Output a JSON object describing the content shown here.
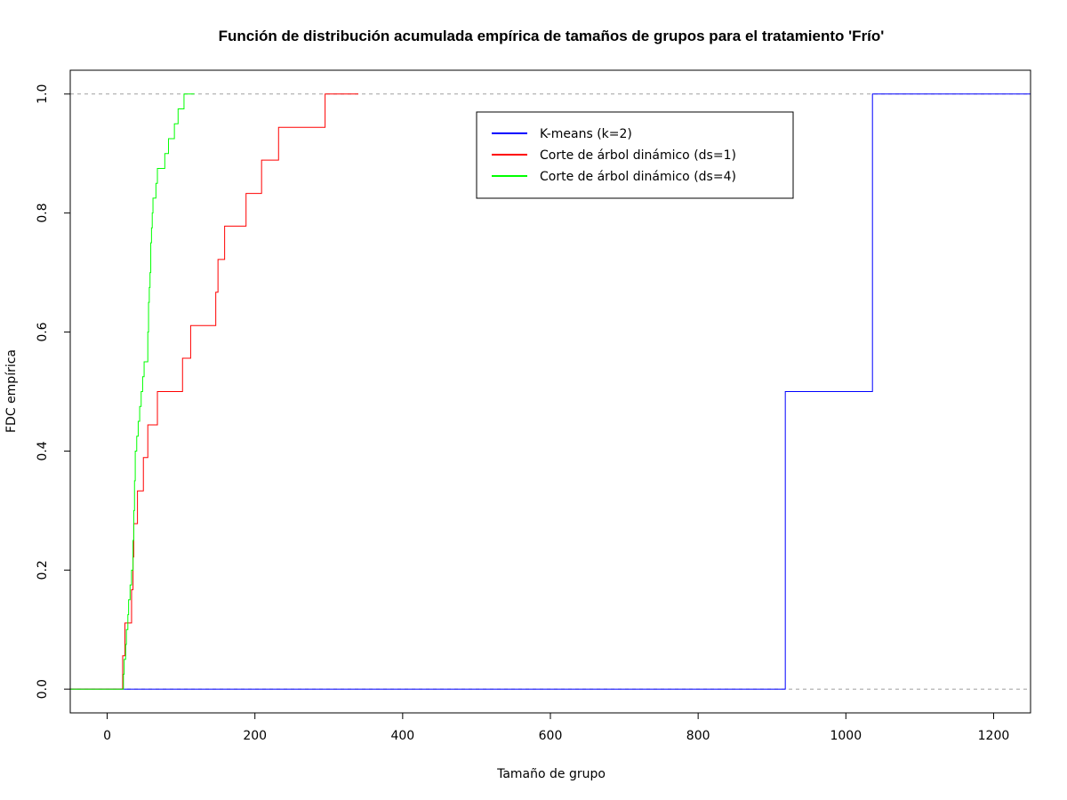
{
  "chart_data": {
    "type": "line",
    "step": true,
    "title": "Función de distribución acumulada empírica de tamaños de grupos para el tratamiento 'Frío'",
    "xlabel": "Tamaño de grupo",
    "ylabel": "FDC empírica",
    "xlim": [
      -50,
      1250
    ],
    "ylim": [
      -0.04,
      1.04
    ],
    "xticks": [
      0,
      200,
      400,
      600,
      800,
      1000,
      1200
    ],
    "xtick_labels": [
      "0",
      "200",
      "400",
      "600",
      "800",
      "1000",
      "1200"
    ],
    "yticks": [
      0,
      0.2,
      0.4,
      0.6,
      0.8,
      1.0
    ],
    "ytick_labels": [
      "0.0",
      "0.2",
      "0.4",
      "0.6",
      "0.8",
      "1.0"
    ],
    "hlines": [
      0,
      1
    ],
    "grid": false,
    "legend_position": "top-center",
    "series": [
      {
        "name": "K-means (k=2)",
        "color": "#0000ff",
        "points": [
          [
            -50,
            0
          ],
          [
            918,
            0.5
          ],
          [
            1036,
            1.0
          ],
          [
            1250,
            1.0
          ]
        ]
      },
      {
        "name": "Corte de árbol dinámico (ds=1)",
        "color": "#ff0000",
        "points": [
          [
            -50,
            0
          ],
          [
            21,
            0.056
          ],
          [
            24,
            0.111
          ],
          [
            33,
            0.167
          ],
          [
            35,
            0.222
          ],
          [
            36,
            0.278
          ],
          [
            41,
            0.333
          ],
          [
            49,
            0.389
          ],
          [
            55,
            0.444
          ],
          [
            68,
            0.5
          ],
          [
            102,
            0.556
          ],
          [
            113,
            0.611
          ],
          [
            147,
            0.667
          ],
          [
            150,
            0.722
          ],
          [
            159,
            0.778
          ],
          [
            188,
            0.833
          ],
          [
            209,
            0.889
          ],
          [
            232,
            0.944
          ],
          [
            295,
            1.0
          ],
          [
            340,
            1.0
          ]
        ]
      },
      {
        "name": "Corte de árbol dinámico (ds=4)",
        "color": "#00ff00",
        "points": [
          [
            -50,
            0
          ],
          [
            22,
            0.025
          ],
          [
            23,
            0.05
          ],
          [
            25,
            0.075
          ],
          [
            26,
            0.1
          ],
          [
            28,
            0.125
          ],
          [
            29,
            0.15
          ],
          [
            31,
            0.175
          ],
          [
            33,
            0.2
          ],
          [
            35,
            0.25
          ],
          [
            36,
            0.3
          ],
          [
            37,
            0.35
          ],
          [
            38,
            0.4
          ],
          [
            40,
            0.425
          ],
          [
            42,
            0.45
          ],
          [
            44,
            0.475
          ],
          [
            46,
            0.5
          ],
          [
            48,
            0.525
          ],
          [
            50,
            0.55
          ],
          [
            55,
            0.6
          ],
          [
            56,
            0.65
          ],
          [
            57,
            0.675
          ],
          [
            58,
            0.7
          ],
          [
            59,
            0.75
          ],
          [
            60,
            0.775
          ],
          [
            61,
            0.8
          ],
          [
            62,
            0.825
          ],
          [
            66,
            0.85
          ],
          [
            68,
            0.875
          ],
          [
            78,
            0.9
          ],
          [
            83,
            0.925
          ],
          [
            91,
            0.95
          ],
          [
            96,
            0.975
          ],
          [
            104,
            1.0
          ],
          [
            118,
            1.0
          ]
        ]
      }
    ]
  }
}
